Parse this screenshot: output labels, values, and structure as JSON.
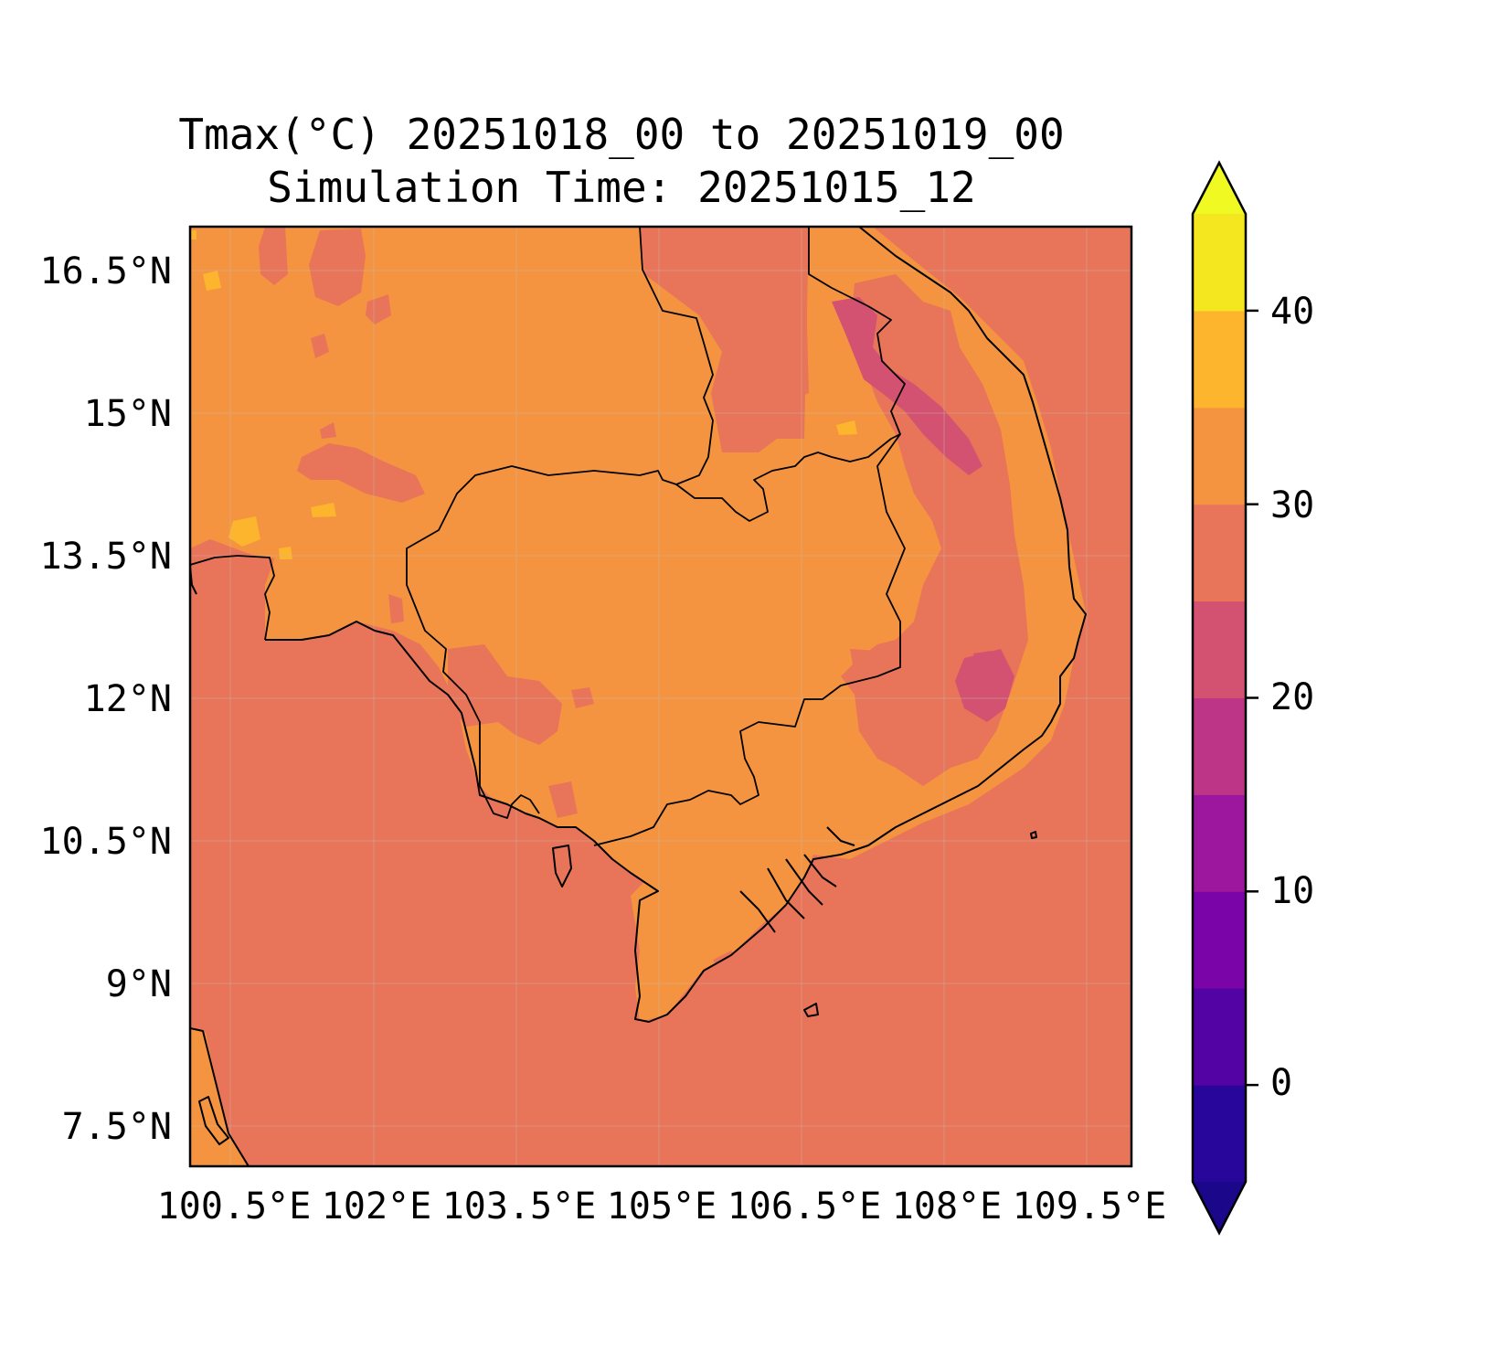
{
  "title": {
    "line1": "Tmax(°C) 20251018_00 to 20251019_00",
    "line2": "Simulation Time: 20251015_12"
  },
  "map": {
    "lat_labels": [
      "16.5°N",
      "15°N",
      "13.5°N",
      "12°N",
      "10.5°N",
      "9°N",
      "7.5°N"
    ],
    "lon_labels": [
      "100.5°E",
      "102°E",
      "103.5°E",
      "105°E",
      "106.5°E",
      "108°E",
      "109.5°E"
    ],
    "extent": {
      "lon": [
        100.5,
        110.4
      ],
      "lat": [
        7.1,
        17.0
      ]
    },
    "gridlines": true,
    "sea_color": "#e8745a",
    "land_color": "#f59440"
  },
  "colorbar": {
    "ticks": [
      "0",
      "10",
      "20",
      "30",
      "40"
    ],
    "levels": [
      -5,
      0,
      5,
      10,
      15,
      20,
      25,
      30,
      35,
      40,
      45
    ],
    "extend": "both",
    "colors": [
      "#1a078a",
      "#28069b",
      "#5302a3",
      "#7a04a8",
      "#9c179e",
      "#bc3587",
      "#d35171",
      "#e8745a",
      "#f59440",
      "#fdb52e",
      "#f4e61f",
      "#f0f921"
    ]
  }
}
